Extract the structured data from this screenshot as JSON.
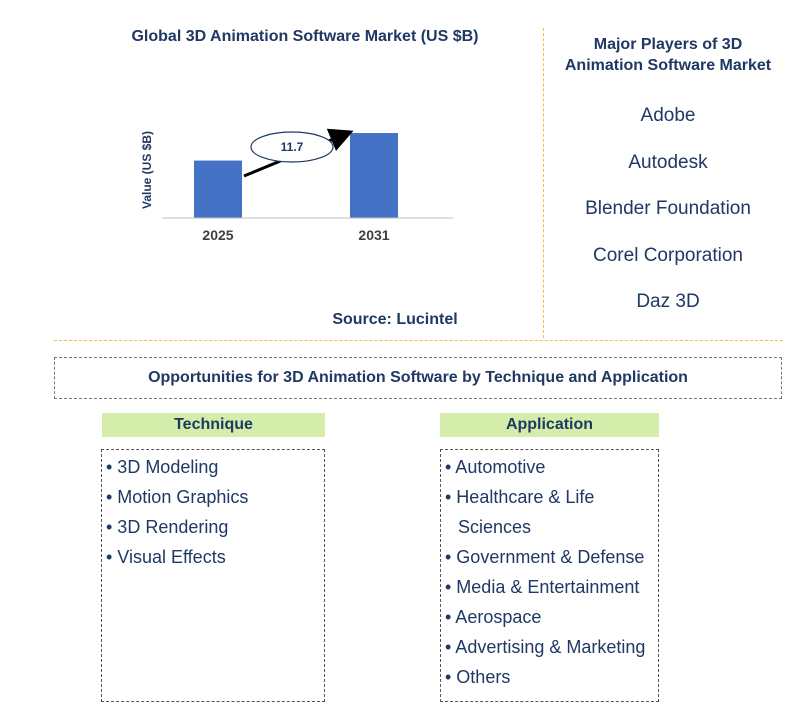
{
  "chart_data": {
    "type": "bar",
    "title": "Global 3D Animation Software Market (US $B)",
    "ylabel": "Value (US $B)",
    "categories": [
      "2025",
      "2031"
    ],
    "values": [
      1.0,
      1.48
    ],
    "annotation": "11.7",
    "color": "#4472c4"
  },
  "source": "Source: Lucintel",
  "players": {
    "title": "Major Players of 3D Animation Software Market",
    "items": [
      "Adobe",
      "Autodesk",
      "Blender Foundation",
      "Corel Corporation",
      "Daz 3D"
    ]
  },
  "opportunities": {
    "title": "Opportunities for 3D Animation Software by Technique and Application",
    "technique": {
      "heading": "Technique",
      "items": [
        "• 3D Modeling",
        "• Motion Graphics",
        "• 3D Rendering",
        "• Visual Effects"
      ]
    },
    "application": {
      "heading": "Application",
      "items": [
        "• Automotive",
        "• Healthcare & Life Sciences",
        "• Government & Defense",
        "• Media & Entertainment",
        "• Aerospace",
        "• Advertising & Marketing",
        "• Others"
      ]
    }
  }
}
